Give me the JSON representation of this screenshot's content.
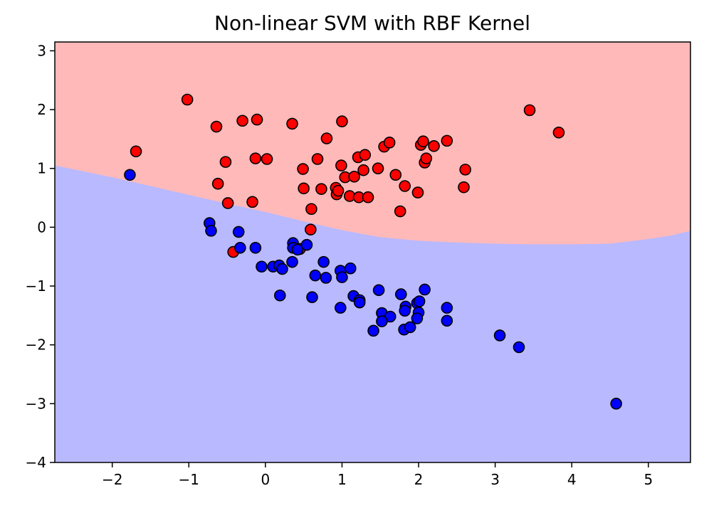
{
  "chart_data": {
    "type": "scatter",
    "title": "Non-linear SVM with RBF Kernel",
    "xlabel": "",
    "ylabel": "",
    "xlim": [
      -2.75,
      5.55
    ],
    "ylim": [
      -4.0,
      3.15
    ],
    "x_ticks": [
      -2,
      -1,
      0,
      1,
      2,
      3,
      4,
      5
    ],
    "y_ticks": [
      -4,
      -3,
      -2,
      -1,
      0,
      1,
      2,
      3
    ],
    "grid": false,
    "legend": "none",
    "colors": {
      "class_red": "#ff0000",
      "class_blue": "#0000ff",
      "region_red": "#ffb9b9",
      "region_blue": "#b9b9ff",
      "marker_edge": "#000000"
    },
    "decision_boundary": {
      "x": [
        -2.75,
        -2.0,
        -1.5,
        -1.0,
        -0.5,
        0.0,
        0.5,
        1.0,
        1.5,
        2.0,
        2.5,
        3.0,
        3.5,
        4.0,
        4.5,
        5.0,
        5.3,
        5.55
      ],
      "y": [
        1.05,
        0.85,
        0.7,
        0.55,
        0.4,
        0.26,
        0.1,
        -0.05,
        -0.17,
        -0.23,
        -0.26,
        -0.28,
        -0.29,
        -0.29,
        -0.28,
        -0.2,
        -0.14,
        -0.06
      ]
    },
    "series": [
      {
        "class": "red",
        "points": [
          [
            -1.02,
            2.17
          ],
          [
            -0.64,
            1.71
          ],
          [
            -0.3,
            1.81
          ],
          [
            -0.11,
            1.83
          ],
          [
            0.35,
            1.76
          ],
          [
            1.0,
            1.8
          ],
          [
            3.45,
            1.99
          ],
          [
            3.83,
            1.61
          ],
          [
            -1.69,
            1.29
          ],
          [
            -0.52,
            1.11
          ],
          [
            -0.13,
            1.17
          ],
          [
            0.02,
            1.16
          ],
          [
            0.68,
            1.16
          ],
          [
            0.8,
            1.51
          ],
          [
            0.49,
            0.99
          ],
          [
            0.99,
            1.05
          ],
          [
            1.21,
            1.19
          ],
          [
            1.3,
            1.23
          ],
          [
            1.28,
            0.97
          ],
          [
            1.04,
            0.85
          ],
          [
            1.47,
            1.0
          ],
          [
            1.55,
            1.37
          ],
          [
            1.62,
            1.44
          ],
          [
            2.03,
            1.4
          ],
          [
            2.06,
            1.46
          ],
          [
            2.2,
            1.38
          ],
          [
            2.37,
            1.47
          ],
          [
            2.08,
            1.1
          ],
          [
            2.1,
            1.17
          ],
          [
            2.61,
            0.98
          ],
          [
            -0.62,
            0.74
          ],
          [
            0.5,
            0.66
          ],
          [
            0.73,
            0.65
          ],
          [
            0.92,
            0.67
          ],
          [
            0.93,
            0.56
          ],
          [
            1.1,
            0.53
          ],
          [
            1.16,
            0.86
          ],
          [
            1.22,
            0.51
          ],
          [
            1.34,
            0.51
          ],
          [
            1.7,
            0.89
          ],
          [
            1.82,
            0.7
          ],
          [
            1.99,
            0.59
          ],
          [
            2.59,
            0.68
          ],
          [
            -0.49,
            0.41
          ],
          [
            -0.17,
            0.43
          ],
          [
            0.6,
            0.31
          ],
          [
            1.76,
            0.27
          ],
          [
            0.59,
            -0.04
          ],
          [
            -0.42,
            -0.42
          ],
          [
            0.45,
            -0.37
          ],
          [
            0.95,
            0.62
          ]
        ]
      },
      {
        "class": "blue",
        "points": [
          [
            -1.77,
            0.89
          ],
          [
            -0.73,
            0.07
          ],
          [
            -0.71,
            -0.06
          ],
          [
            -0.35,
            -0.08
          ],
          [
            -0.33,
            -0.35
          ],
          [
            -0.13,
            -0.35
          ],
          [
            0.36,
            -0.27
          ],
          [
            0.36,
            -0.35
          ],
          [
            0.42,
            -0.38
          ],
          [
            0.54,
            -0.3
          ],
          [
            -0.05,
            -0.67
          ],
          [
            0.1,
            -0.67
          ],
          [
            0.18,
            -0.65
          ],
          [
            0.22,
            -0.71
          ],
          [
            0.35,
            -0.59
          ],
          [
            0.65,
            -0.82
          ],
          [
            0.76,
            -0.59
          ],
          [
            0.79,
            -0.86
          ],
          [
            0.98,
            -0.74
          ],
          [
            1.0,
            -0.85
          ],
          [
            1.11,
            -0.7
          ],
          [
            0.19,
            -1.16
          ],
          [
            0.61,
            -1.19
          ],
          [
            1.15,
            -1.17
          ],
          [
            1.23,
            -1.24
          ],
          [
            1.23,
            -1.28
          ],
          [
            1.48,
            -1.07
          ],
          [
            1.77,
            -1.14
          ],
          [
            2.08,
            -1.06
          ],
          [
            0.98,
            -1.37
          ],
          [
            1.52,
            -1.46
          ],
          [
            1.63,
            -1.52
          ],
          [
            1.52,
            -1.6
          ],
          [
            1.83,
            -1.35
          ],
          [
            1.82,
            -1.42
          ],
          [
            1.98,
            -1.29
          ],
          [
            2.01,
            -1.26
          ],
          [
            2.0,
            -1.45
          ],
          [
            1.98,
            -1.55
          ],
          [
            2.37,
            -1.37
          ],
          [
            2.37,
            -1.59
          ],
          [
            1.41,
            -1.76
          ],
          [
            1.81,
            -1.74
          ],
          [
            1.89,
            -1.7
          ],
          [
            3.06,
            -1.84
          ],
          [
            3.31,
            -2.04
          ],
          [
            4.58,
            -3.0
          ]
        ]
      }
    ]
  }
}
